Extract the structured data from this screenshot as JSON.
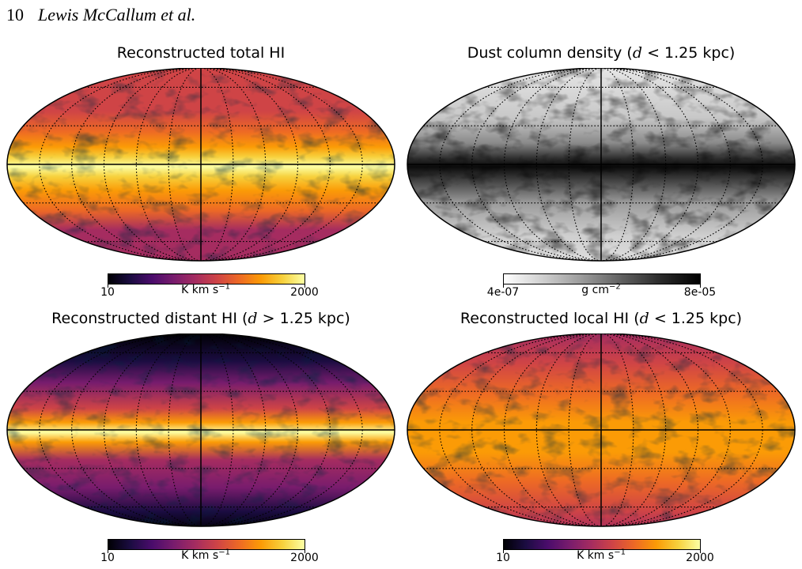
{
  "header": {
    "page_number": "10",
    "authors": "Lewis McCallum et al."
  },
  "panels": [
    {
      "title_pre": "Reconstructed total HI",
      "title_var": "",
      "title_post": "",
      "colormap": "inferno",
      "colorbar": {
        "min_label": "10",
        "unit_label": "K km s",
        "unit_exp": "−1",
        "max_label": "2000"
      }
    },
    {
      "title_pre": "Dust column density (",
      "title_var": "d",
      "title_post": " < 1.25 kpc)",
      "colormap": "gray_reversed",
      "colorbar": {
        "min_label": "4e-07",
        "unit_label": "g cm",
        "unit_exp": "−2",
        "max_label": "8e-05"
      }
    },
    {
      "title_pre": "Reconstructed distant HI (",
      "title_var": "d",
      "title_post": " > 1.25 kpc)",
      "colormap": "inferno",
      "colorbar": {
        "min_label": "10",
        "unit_label": "K km s",
        "unit_exp": "−1",
        "max_label": "2000"
      }
    },
    {
      "title_pre": "Reconstructed local HI (",
      "title_var": "d",
      "title_post": " < 1.25 kpc)",
      "colormap": "inferno",
      "colorbar": {
        "min_label": "10",
        "unit_label": "K km s",
        "unit_exp": "−1",
        "max_label": "2000"
      }
    }
  ],
  "colors": {
    "inferno": [
      "#000004",
      "#1b0c41",
      "#4a0c6b",
      "#781c6d",
      "#a52c60",
      "#cf4446",
      "#ed6925",
      "#fb9b06",
      "#f7d13d",
      "#fcffa4"
    ],
    "gray_reversed": [
      "#ffffff",
      "#cfcfcf",
      "#9a9a9a",
      "#606060",
      "#2a2a2a",
      "#000000"
    ]
  }
}
